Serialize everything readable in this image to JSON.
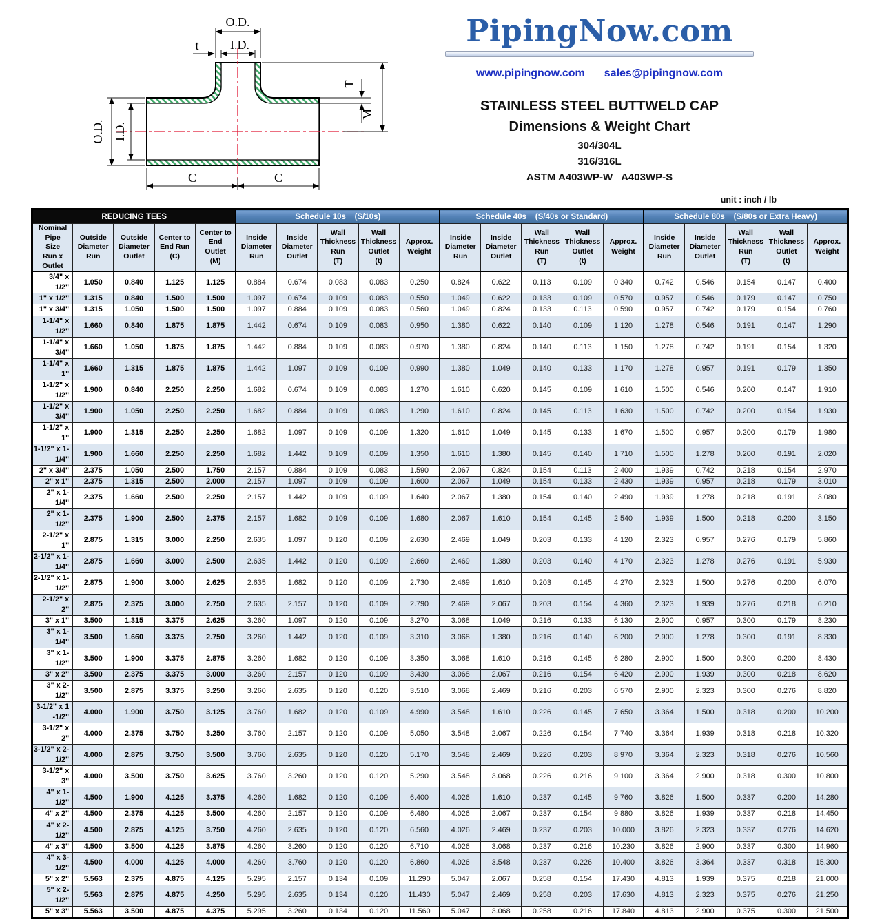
{
  "branding": {
    "logo_text": "PipingNow.com",
    "website": "www.pipingnow.com",
    "email": "sales@pipingnow.com",
    "logo_color": "#2b5ea8",
    "link_color": "#1b2ec2"
  },
  "title": {
    "line1": "STAINLESS STEEL BUTTWELD CAP",
    "line2": "Dimensions & Weight Chart",
    "line3": "304/304L",
    "line4": "316/316L",
    "line5": "ASTM A403WP-W   A403WP-S",
    "unit_note": "unit : inch / lb"
  },
  "diagram": {
    "labels": {
      "od_top": "O.D.",
      "id_top": "I.D.",
      "t_small": "t",
      "od_left": "O.D.",
      "id_left": "I.D.",
      "T_right": "T",
      "M_right": "M",
      "c_left": "C",
      "c_right": "C"
    },
    "hatch_color": "#3fa768",
    "centerline_color": "#e01935"
  },
  "table": {
    "group_headers": [
      {
        "label": "REDUCING TEES",
        "span": 5,
        "style": "black"
      },
      {
        "label": "Schedule 10s    (S/10s)",
        "span": 5,
        "style": "blue"
      },
      {
        "label": "Schedule 40s    (S/40s or Standard)",
        "span": 5,
        "style": "blue"
      },
      {
        "label": "Schedule 80s    (S/80s or Extra Heavy)",
        "span": 5,
        "style": "blue"
      }
    ],
    "columns": [
      "Nominal Pipe\nSize\nRun x Outlet",
      "Outside\nDiameter\nRun",
      "Outside\nDiameter\nOutlet",
      "Center to\nEnd Run\n(C)",
      "Center to\nEnd\nOutlet\n(M)",
      "Inside\nDiameter\nRun",
      "Inside\nDiameter\nOutlet",
      "Wall\nThickness\nRun\n(T)",
      "Wall\nThickness\nOutlet\n(t)",
      "Approx.\nWeight",
      "Inside\nDiameter\nRun",
      "Inside\nDiameter\nOutlet",
      "Wall\nThickness\nRun\n(T)",
      "Wall\nThickness\nOutlet\n(t)",
      "Approx.\nWeight",
      "Inside\nDiameter\nRun",
      "Inside\nDiameter\nOutlet",
      "Wall\nThickness\nRun\n(T)",
      "Wall\nThickness\nOutlet\n(t)",
      "Approx.\nWeight"
    ],
    "rows": [
      [
        "3/4\" x 1/2\"",
        "1.050",
        "0.840",
        "1.125",
        "1.125",
        "0.884",
        "0.674",
        "0.083",
        "0.083",
        "0.250",
        "0.824",
        "0.622",
        "0.113",
        "0.109",
        "0.340",
        "0.742",
        "0.546",
        "0.154",
        "0.147",
        "0.400"
      ],
      [
        "1\" x 1/2\"",
        "1.315",
        "0.840",
        "1.500",
        "1.500",
        "1.097",
        "0.674",
        "0.109",
        "0.083",
        "0.550",
        "1.049",
        "0.622",
        "0.133",
        "0.109",
        "0.570",
        "0.957",
        "0.546",
        "0.179",
        "0.147",
        "0.750"
      ],
      [
        "1\" x 3/4\"",
        "1.315",
        "1.050",
        "1.500",
        "1.500",
        "1.097",
        "0.884",
        "0.109",
        "0.083",
        "0.560",
        "1.049",
        "0.824",
        "0.133",
        "0.113",
        "0.590",
        "0.957",
        "0.742",
        "0.179",
        "0.154",
        "0.760"
      ],
      [
        "1-1/4\" x 1/2\"",
        "1.660",
        "0.840",
        "1.875",
        "1.875",
        "1.442",
        "0.674",
        "0.109",
        "0.083",
        "0.950",
        "1.380",
        "0.622",
        "0.140",
        "0.109",
        "1.120",
        "1.278",
        "0.546",
        "0.191",
        "0.147",
        "1.290"
      ],
      [
        "1-1/4\" x 3/4\"",
        "1.660",
        "1.050",
        "1.875",
        "1.875",
        "1.442",
        "0.884",
        "0.109",
        "0.083",
        "0.970",
        "1.380",
        "0.824",
        "0.140",
        "0.113",
        "1.150",
        "1.278",
        "0.742",
        "0.191",
        "0.154",
        "1.320"
      ],
      [
        "1-1/4\" x 1\"",
        "1.660",
        "1.315",
        "1.875",
        "1.875",
        "1.442",
        "1.097",
        "0.109",
        "0.109",
        "0.990",
        "1.380",
        "1.049",
        "0.140",
        "0.133",
        "1.170",
        "1.278",
        "0.957",
        "0.191",
        "0.179",
        "1.350"
      ],
      [
        "1-1/2\" x 1/2\"",
        "1.900",
        "0.840",
        "2.250",
        "2.250",
        "1.682",
        "0.674",
        "0.109",
        "0.083",
        "1.270",
        "1.610",
        "0.620",
        "0.145",
        "0.109",
        "1.610",
        "1.500",
        "0.546",
        "0.200",
        "0.147",
        "1.910"
      ],
      [
        "1-1/2\" x 3/4\"",
        "1.900",
        "1.050",
        "2.250",
        "2.250",
        "1.682",
        "0.884",
        "0.109",
        "0.083",
        "1.290",
        "1.610",
        "0.824",
        "0.145",
        "0.113",
        "1.630",
        "1.500",
        "0.742",
        "0.200",
        "0.154",
        "1.930"
      ],
      [
        "1-1/2\" x 1\"",
        "1.900",
        "1.315",
        "2.250",
        "2.250",
        "1.682",
        "1.097",
        "0.109",
        "0.109",
        "1.320",
        "1.610",
        "1.049",
        "0.145",
        "0.133",
        "1.670",
        "1.500",
        "0.957",
        "0.200",
        "0.179",
        "1.980"
      ],
      [
        "1-1/2\" x 1-1/4\"",
        "1.900",
        "1.660",
        "2.250",
        "2.250",
        "1.682",
        "1.442",
        "0.109",
        "0.109",
        "1.350",
        "1.610",
        "1.380",
        "0.145",
        "0.140",
        "1.710",
        "1.500",
        "1.278",
        "0.200",
        "0.191",
        "2.020"
      ],
      [
        "2\" x 3/4\"",
        "2.375",
        "1.050",
        "2.500",
        "1.750",
        "2.157",
        "0.884",
        "0.109",
        "0.083",
        "1.590",
        "2.067",
        "0.824",
        "0.154",
        "0.113",
        "2.400",
        "1.939",
        "0.742",
        "0.218",
        "0.154",
        "2.970"
      ],
      [
        "2\" x 1\"",
        "2.375",
        "1.315",
        "2.500",
        "2.000",
        "2.157",
        "1.097",
        "0.109",
        "0.109",
        "1.600",
        "2.067",
        "1.049",
        "0.154",
        "0.133",
        "2.430",
        "1.939",
        "0.957",
        "0.218",
        "0.179",
        "3.010"
      ],
      [
        "2\" x 1-1/4\"",
        "2.375",
        "1.660",
        "2.500",
        "2.250",
        "2.157",
        "1.442",
        "0.109",
        "0.109",
        "1.640",
        "2.067",
        "1.380",
        "0.154",
        "0.140",
        "2.490",
        "1.939",
        "1.278",
        "0.218",
        "0.191",
        "3.080"
      ],
      [
        "2\" x 1-1/2\"",
        "2.375",
        "1.900",
        "2.500",
        "2.375",
        "2.157",
        "1.682",
        "0.109",
        "0.109",
        "1.680",
        "2.067",
        "1.610",
        "0.154",
        "0.145",
        "2.540",
        "1.939",
        "1.500",
        "0.218",
        "0.200",
        "3.150"
      ],
      [
        "2-1/2\" x 1\"",
        "2.875",
        "1.315",
        "3.000",
        "2.250",
        "2.635",
        "1.097",
        "0.120",
        "0.109",
        "2.630",
        "2.469",
        "1.049",
        "0.203",
        "0.133",
        "4.120",
        "2.323",
        "0.957",
        "0.276",
        "0.179",
        "5.860"
      ],
      [
        "2-1/2\" x 1-1/4\"",
        "2.875",
        "1.660",
        "3.000",
        "2.500",
        "2.635",
        "1.442",
        "0.120",
        "0.109",
        "2.660",
        "2.469",
        "1.380",
        "0.203",
        "0.140",
        "4.170",
        "2.323",
        "1.278",
        "0.276",
        "0.191",
        "5.930"
      ],
      [
        "2-1/2\" x 1-1/2\"",
        "2.875",
        "1.900",
        "3.000",
        "2.625",
        "2.635",
        "1.682",
        "0.120",
        "0.109",
        "2.730",
        "2.469",
        "1.610",
        "0.203",
        "0.145",
        "4.270",
        "2.323",
        "1.500",
        "0.276",
        "0.200",
        "6.070"
      ],
      [
        "2-1/2\" x 2\"",
        "2.875",
        "2.375",
        "3.000",
        "2.750",
        "2.635",
        "2.157",
        "0.120",
        "0.109",
        "2.790",
        "2.469",
        "2.067",
        "0.203",
        "0.154",
        "4.360",
        "2.323",
        "1.939",
        "0.276",
        "0.218",
        "6.210"
      ],
      [
        "3\" x 1\"",
        "3.500",
        "1.315",
        "3.375",
        "2.625",
        "3.260",
        "1.097",
        "0.120",
        "0.109",
        "3.270",
        "3.068",
        "1.049",
        "0.216",
        "0.133",
        "6.130",
        "2.900",
        "0.957",
        "0.300",
        "0.179",
        "8.230"
      ],
      [
        "3\" x 1-1/4\"",
        "3.500",
        "1.660",
        "3.375",
        "2.750",
        "3.260",
        "1.442",
        "0.120",
        "0.109",
        "3.310",
        "3.068",
        "1.380",
        "0.216",
        "0.140",
        "6.200",
        "2.900",
        "1.278",
        "0.300",
        "0.191",
        "8.330"
      ],
      [
        "3\" x 1-1/2\"",
        "3.500",
        "1.900",
        "3.375",
        "2.875",
        "3.260",
        "1.682",
        "0.120",
        "0.109",
        "3.350",
        "3.068",
        "1.610",
        "0.216",
        "0.145",
        "6.280",
        "2.900",
        "1.500",
        "0.300",
        "0.200",
        "8.430"
      ],
      [
        "3\" x 2\"",
        "3.500",
        "2.375",
        "3.375",
        "3.000",
        "3.260",
        "2.157",
        "0.120",
        "0.109",
        "3.430",
        "3.068",
        "2.067",
        "0.216",
        "0.154",
        "6.420",
        "2.900",
        "1.939",
        "0.300",
        "0.218",
        "8.620"
      ],
      [
        "3\" x 2-1/2\"",
        "3.500",
        "2.875",
        "3.375",
        "3.250",
        "3.260",
        "2.635",
        "0.120",
        "0.120",
        "3.510",
        "3.068",
        "2.469",
        "0.216",
        "0.203",
        "6.570",
        "2.900",
        "2.323",
        "0.300",
        "0.276",
        "8.820"
      ],
      [
        "3-1/2\" x 1 -1/2\"",
        "4.000",
        "1.900",
        "3.750",
        "3.125",
        "3.760",
        "1.682",
        "0.120",
        "0.109",
        "4.990",
        "3.548",
        "1.610",
        "0.226",
        "0.145",
        "7.650",
        "3.364",
        "1.500",
        "0.318",
        "0.200",
        "10.200"
      ],
      [
        "3-1/2\" x 2\"",
        "4.000",
        "2.375",
        "3.750",
        "3.250",
        "3.760",
        "2.157",
        "0.120",
        "0.109",
        "5.050",
        "3.548",
        "2.067",
        "0.226",
        "0.154",
        "7.740",
        "3.364",
        "1.939",
        "0.318",
        "0.218",
        "10.320"
      ],
      [
        "3-1/2\" x 2-1/2\"",
        "4.000",
        "2.875",
        "3.750",
        "3.500",
        "3.760",
        "2.635",
        "0.120",
        "0.120",
        "5.170",
        "3.548",
        "2.469",
        "0.226",
        "0.203",
        "8.970",
        "3.364",
        "2.323",
        "0.318",
        "0.276",
        "10.560"
      ],
      [
        "3-1/2\" x 3\"",
        "4.000",
        "3.500",
        "3.750",
        "3.625",
        "3.760",
        "3.260",
        "0.120",
        "0.120",
        "5.290",
        "3.548",
        "3.068",
        "0.226",
        "0.216",
        "9.100",
        "3.364",
        "2.900",
        "0.318",
        "0.300",
        "10.800"
      ],
      [
        "4\" x 1-1/2\"",
        "4.500",
        "1.900",
        "4.125",
        "3.375",
        "4.260",
        "1.682",
        "0.120",
        "0.109",
        "6.400",
        "4.026",
        "1.610",
        "0.237",
        "0.145",
        "9.760",
        "3.826",
        "1.500",
        "0.337",
        "0.200",
        "14.280"
      ],
      [
        "4\" x 2\"",
        "4.500",
        "2.375",
        "4.125",
        "3.500",
        "4.260",
        "2.157",
        "0.120",
        "0.109",
        "6.480",
        "4.026",
        "2.067",
        "0.237",
        "0.154",
        "9.880",
        "3.826",
        "1.939",
        "0.337",
        "0.218",
        "14.450"
      ],
      [
        "4\" x 2-1/2\"",
        "4.500",
        "2.875",
        "4.125",
        "3.750",
        "4.260",
        "2.635",
        "0.120",
        "0.120",
        "6.560",
        "4.026",
        "2.469",
        "0.237",
        "0.203",
        "10.000",
        "3.826",
        "2.323",
        "0.337",
        "0.276",
        "14.620"
      ],
      [
        "4\" x 3\"",
        "4.500",
        "3.500",
        "4.125",
        "3.875",
        "4.260",
        "3.260",
        "0.120",
        "0.120",
        "6.710",
        "4.026",
        "3.068",
        "0.237",
        "0.216",
        "10.230",
        "3.826",
        "2.900",
        "0.337",
        "0.300",
        "14.960"
      ],
      [
        "4\" x 3-1/2\"",
        "4.500",
        "4.000",
        "4.125",
        "4.000",
        "4.260",
        "3.760",
        "0.120",
        "0.120",
        "6.860",
        "4.026",
        "3.548",
        "0.237",
        "0.226",
        "10.400",
        "3.826",
        "3.364",
        "0.337",
        "0.318",
        "15.300"
      ],
      [
        "5\" x 2\"",
        "5.563",
        "2.375",
        "4.875",
        "4.125",
        "5.295",
        "2.157",
        "0.134",
        "0.109",
        "11.290",
        "5.047",
        "2.067",
        "0.258",
        "0.154",
        "17.430",
        "4.813",
        "1.939",
        "0.375",
        "0.218",
        "21.000"
      ],
      [
        "5\" x 2-1/2\"",
        "5.563",
        "2.875",
        "4.875",
        "4.250",
        "5.295",
        "2.635",
        "0.134",
        "0.120",
        "11.430",
        "5.047",
        "2.469",
        "0.258",
        "0.203",
        "17.630",
        "4.813",
        "2.323",
        "0.375",
        "0.276",
        "21.250"
      ],
      [
        "5\" x 3\"",
        "5.563",
        "3.500",
        "4.875",
        "4.375",
        "5.295",
        "3.260",
        "0.134",
        "0.120",
        "11.560",
        "5.047",
        "3.068",
        "0.258",
        "0.216",
        "17.840",
        "4.813",
        "2.900",
        "0.375",
        "0.300",
        "21.500"
      ]
    ]
  }
}
